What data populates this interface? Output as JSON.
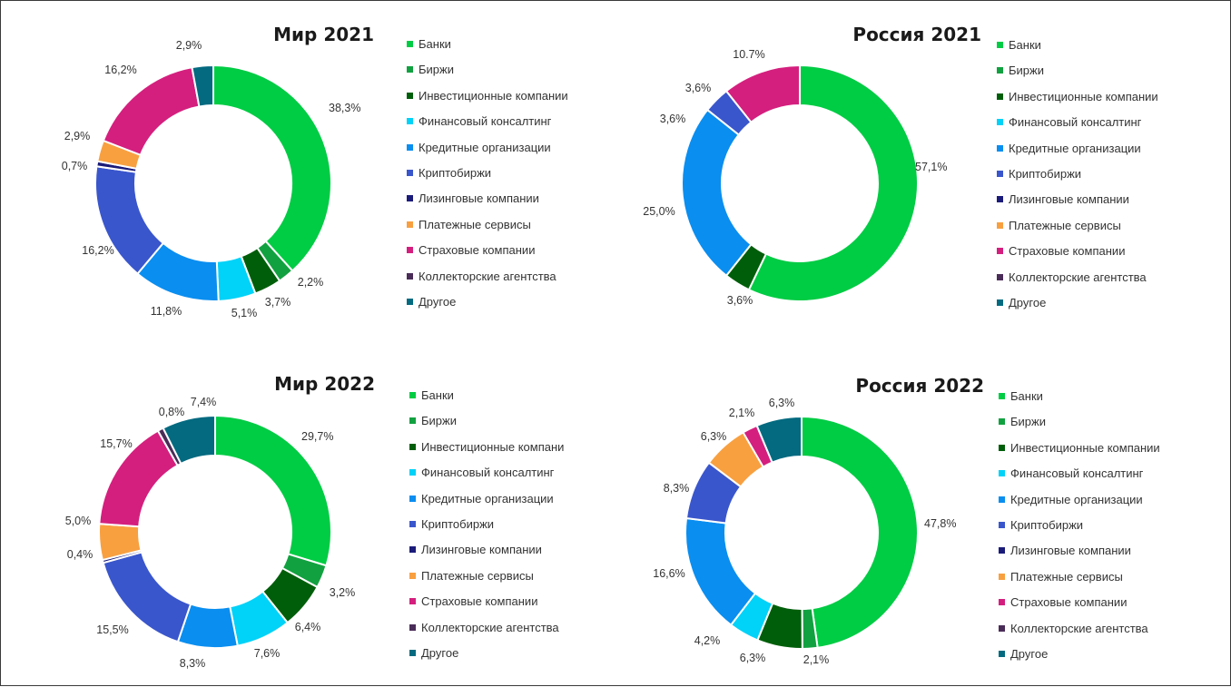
{
  "categories": [
    "Банки",
    "Биржи",
    "Инвестиционные компании",
    "Финансовый консалтинг",
    "Кредитные организации",
    "Криптобиржи",
    "Лизинговые компании",
    "Платежные сервисы",
    "Страховые компании",
    "Коллекторские агентства",
    "Другое"
  ],
  "colors": [
    "#00cc44",
    "#12a140",
    "#005e0a",
    "#00d2f8",
    "#0a8ef0",
    "#3a56cc",
    "#1b1b7a",
    "#f8a040",
    "#d41f7e",
    "#4a2c58",
    "#036a80"
  ],
  "chart_data": [
    {
      "type": "pie",
      "title": "Мир 2021",
      "categories": [
        "Банки",
        "Биржи",
        "Инвестиционные компании",
        "Финансовый консалтинг",
        "Кредитные организации",
        "Криптобиржи",
        "Лизинговые компании",
        "Платежные сервисы",
        "Страховые компании",
        "Коллекторские агентства",
        "Другое"
      ],
      "values": [
        38.3,
        2.2,
        3.7,
        5.1,
        11.8,
        16.2,
        0.7,
        2.9,
        16.2,
        0,
        2.9
      ],
      "labels": [
        "38,3%",
        "2,2%",
        "3,7%",
        "5,1%",
        "11,8%",
        "16,2%",
        "0,7%",
        "2,9%",
        "16,2%",
        "",
        "2,9%"
      ]
    },
    {
      "type": "pie",
      "title": "Россия 2021",
      "categories": [
        "Банки",
        "Биржи",
        "Инвестиционные компании",
        "Финансовый консалтинг",
        "Кредитные организации",
        "Криптобиржи",
        "Лизинговые компании",
        "Платежные сервисы",
        "Страховые компании",
        "Коллекторские агентства",
        "Другое"
      ],
      "values": [
        57.1,
        0,
        3.6,
        0,
        25.0,
        3.6,
        0,
        0,
        10.7,
        0,
        0
      ],
      "labels": [
        "57,1%",
        "",
        "3,6%",
        "",
        "25,0%",
        "3,6%",
        "",
        "",
        "10.7%",
        "",
        ""
      ],
      "extra_labels": [
        "3,6%"
      ]
    },
    {
      "type": "pie",
      "title": "Мир 2022",
      "categories": [
        "Банки",
        "Биржи",
        "Инвестиционные компании",
        "Финансовый консалтинг",
        "Кредитные организации",
        "Криптобиржи",
        "Лизинговые компании",
        "Платежные сервисы",
        "Страховые компании",
        "Коллекторские агентства",
        "Другое"
      ],
      "legend_display": [
        "Банки",
        "Биржи",
        "Инвестиционные компани",
        "Финансовый консалтинг",
        "Кредитные организации",
        "Криптобиржи",
        "Лизинговые компании",
        "Платежные сервисы",
        "Страховые компании",
        "Коллекторские агентства",
        "Другое"
      ],
      "values": [
        29.7,
        3.2,
        6.4,
        7.6,
        8.3,
        15.5,
        0.4,
        5.0,
        15.7,
        0.8,
        7.4
      ],
      "labels": [
        "29,7%",
        "3,2%",
        "6,4%",
        "7,6%",
        "8,3%",
        "15,5%",
        "0,4%",
        "5,0%",
        "15,7%",
        "0,8%",
        "7,4%"
      ]
    },
    {
      "type": "pie",
      "title": "Россия 2022",
      "categories": [
        "Банки",
        "Биржи",
        "Инвестиционные компании",
        "Финансовый консалтинг",
        "Кредитные организации",
        "Криптобиржи",
        "Лизинговые компании",
        "Платежные сервисы",
        "Страховые компании",
        "Коллекторские агентства",
        "Другое"
      ],
      "values": [
        47.8,
        2.1,
        6.3,
        4.2,
        16.6,
        8.3,
        0,
        6.3,
        2.1,
        0,
        6.3
      ],
      "labels": [
        "47,8%",
        "2,1%",
        "6,3%",
        "4,2%",
        "16,6%",
        "8,3%",
        "",
        "6,3%",
        "2,1%",
        "",
        "6,3%"
      ]
    }
  ]
}
